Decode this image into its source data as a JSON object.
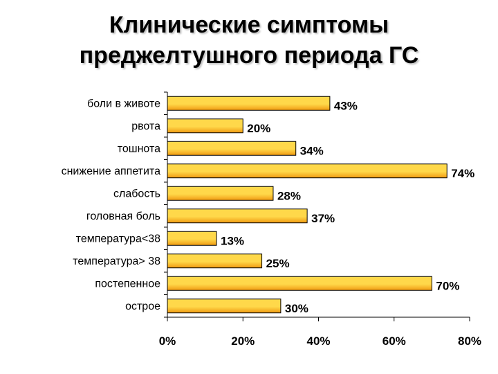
{
  "slide": {
    "title_line1": "Клинические симптомы",
    "title_line2": "преджелтушного периода ГС"
  },
  "chart_data": {
    "type": "bar",
    "orientation": "horizontal",
    "categories": [
      "боли в животе",
      "рвота",
      "тошнота",
      "снижение аппетита",
      "слабость",
      "головная боль",
      "температура<38",
      "температура> 38",
      "постепенное",
      "острое"
    ],
    "values": [
      43,
      20,
      34,
      74,
      28,
      37,
      13,
      25,
      70,
      30
    ],
    "value_labels": [
      "43%",
      "20%",
      "34%",
      "74%",
      "28%",
      "37%",
      "13%",
      "25%",
      "70%",
      "30%"
    ],
    "x_ticks": [
      "0%",
      "20%",
      "40%",
      "60%",
      "80%"
    ],
    "xlim": [
      0,
      80
    ],
    "grid": false,
    "legend": "none",
    "colors": {
      "bar_light": "#ffd84a",
      "bar_dark": "#f09a12",
      "bar_edge": "#000000"
    }
  }
}
